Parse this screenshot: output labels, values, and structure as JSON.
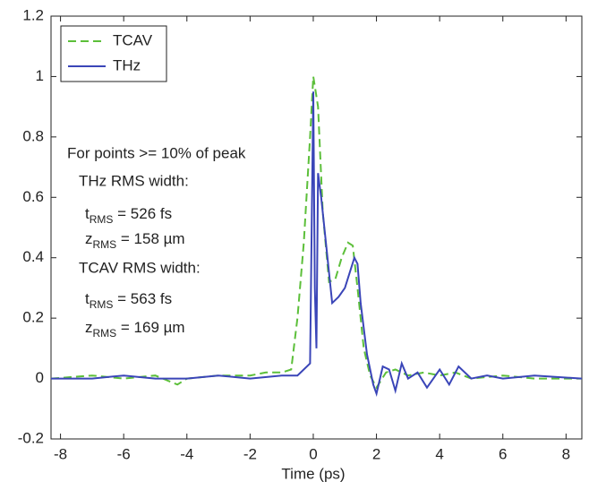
{
  "chart_data": {
    "type": "line",
    "xlabel": "Time (ps)",
    "xlim": [
      -8.3,
      8.5
    ],
    "ylim": [
      -0.2,
      1.2
    ],
    "xticks": [
      -8,
      -6,
      -4,
      -2,
      0,
      2,
      4,
      6,
      8
    ],
    "yticks": [
      -0.2,
      0,
      0.2,
      0.4,
      0.6,
      0.8,
      1,
      1.2
    ],
    "legend": "upper left",
    "annotations": [
      {
        "text": "For points >= 10% of peak"
      },
      {
        "text": "THz RMS width:"
      },
      {
        "base": "t",
        "sub": "RMS",
        "rest": " = 526 fs"
      },
      {
        "base": "z",
        "sub": "RMS",
        "rest": " = 158 µm"
      },
      {
        "text": "TCAV RMS width:"
      },
      {
        "base": "t",
        "sub": "RMS",
        "rest": " = 563 fs"
      },
      {
        "base": "z",
        "sub": "RMS",
        "rest": " = 169 µm"
      }
    ],
    "series": [
      {
        "name": "TCAV",
        "color": "#5cbf3a",
        "dash": true,
        "x": [
          -8.3,
          -7,
          -6,
          -5,
          -4.3,
          -4,
          -3,
          -2,
          -1.5,
          -1,
          -0.7,
          -0.5,
          -0.3,
          -0.1,
          0,
          0.15,
          0.3,
          0.5,
          0.7,
          0.9,
          1.1,
          1.25,
          1.4,
          1.6,
          1.8,
          2.0,
          2.3,
          2.6,
          3,
          3.5,
          4,
          4.5,
          5,
          6,
          7,
          8.5
        ],
        "values": [
          0,
          0.01,
          0,
          0.01,
          -0.02,
          0,
          0.01,
          0.01,
          0.02,
          0.02,
          0.03,
          0.2,
          0.45,
          0.8,
          1.0,
          0.9,
          0.55,
          0.32,
          0.33,
          0.4,
          0.45,
          0.44,
          0.3,
          0.1,
          0.01,
          -0.03,
          0.02,
          0.03,
          0.01,
          0.02,
          0.01,
          0.02,
          0,
          0.01,
          0,
          0
        ]
      },
      {
        "name": "THz",
        "color": "#3a45b8",
        "dash": false,
        "x": [
          -8.3,
          -7,
          -6,
          -5,
          -4,
          -3,
          -2,
          -1,
          -0.5,
          -0.1,
          0,
          0.05,
          0.1,
          0.15,
          0.25,
          0.4,
          0.6,
          0.8,
          1.0,
          1.15,
          1.3,
          1.4,
          1.5,
          1.7,
          1.9,
          2.0,
          2.2,
          2.4,
          2.6,
          2.8,
          3,
          3.3,
          3.6,
          4,
          4.3,
          4.6,
          5,
          5.5,
          6,
          7,
          8.5
        ],
        "values": [
          0,
          0,
          0.01,
          0,
          0,
          0.01,
          0,
          0.01,
          0.01,
          0.05,
          0.95,
          0.3,
          0.1,
          0.68,
          0.6,
          0.45,
          0.25,
          0.27,
          0.3,
          0.35,
          0.4,
          0.38,
          0.25,
          0.08,
          -0.02,
          -0.05,
          0.04,
          0.03,
          -0.04,
          0.05,
          0,
          0.02,
          -0.03,
          0.03,
          -0.02,
          0.04,
          0,
          0.01,
          0,
          0.01,
          0
        ]
      }
    ]
  }
}
